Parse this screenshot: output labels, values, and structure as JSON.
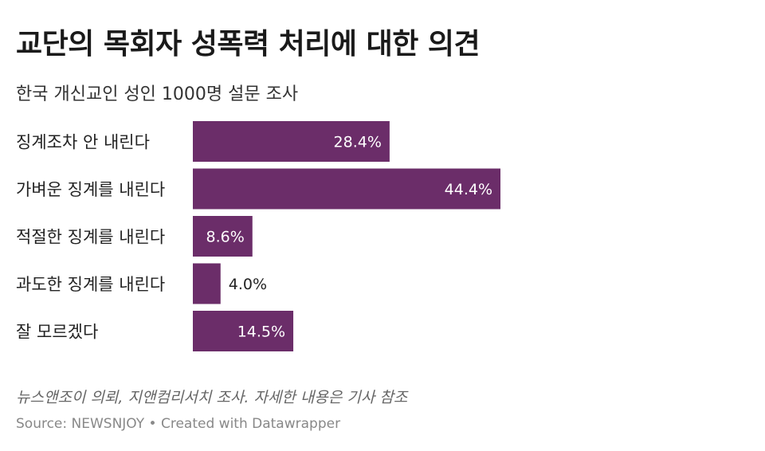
{
  "header": {
    "title": "교단의 목회자 성폭력 처리에 대한 의견",
    "subtitle": "한국 개신교인 성인 1000명 설문 조사"
  },
  "chart_data": {
    "type": "bar",
    "orientation": "horizontal",
    "categories": [
      "징계조차 안 내린다",
      "가벼운 징계를 내린다",
      "적절한 징계를 내린다",
      "과도한 징계를 내린다",
      "잘 모르겠다"
    ],
    "values": [
      28.4,
      44.4,
      8.6,
      4.0,
      14.5
    ],
    "value_labels": [
      "28.4%",
      "44.4%",
      "8.6%",
      "4.0%",
      "14.5%"
    ],
    "unit": "%",
    "xlim": [
      0,
      44.4
    ],
    "grid": false,
    "legend": "none",
    "bar_color": "#6b2d69",
    "label_color_inside": "#ffffff",
    "label_color_outside": "#222222"
  },
  "footer": {
    "note": "뉴스앤조이 의뢰, 지앤컴리서치 조사. 자세한 내용은 기사 참조",
    "source": "Source: NEWSNJOY • Created with Datawrapper"
  }
}
